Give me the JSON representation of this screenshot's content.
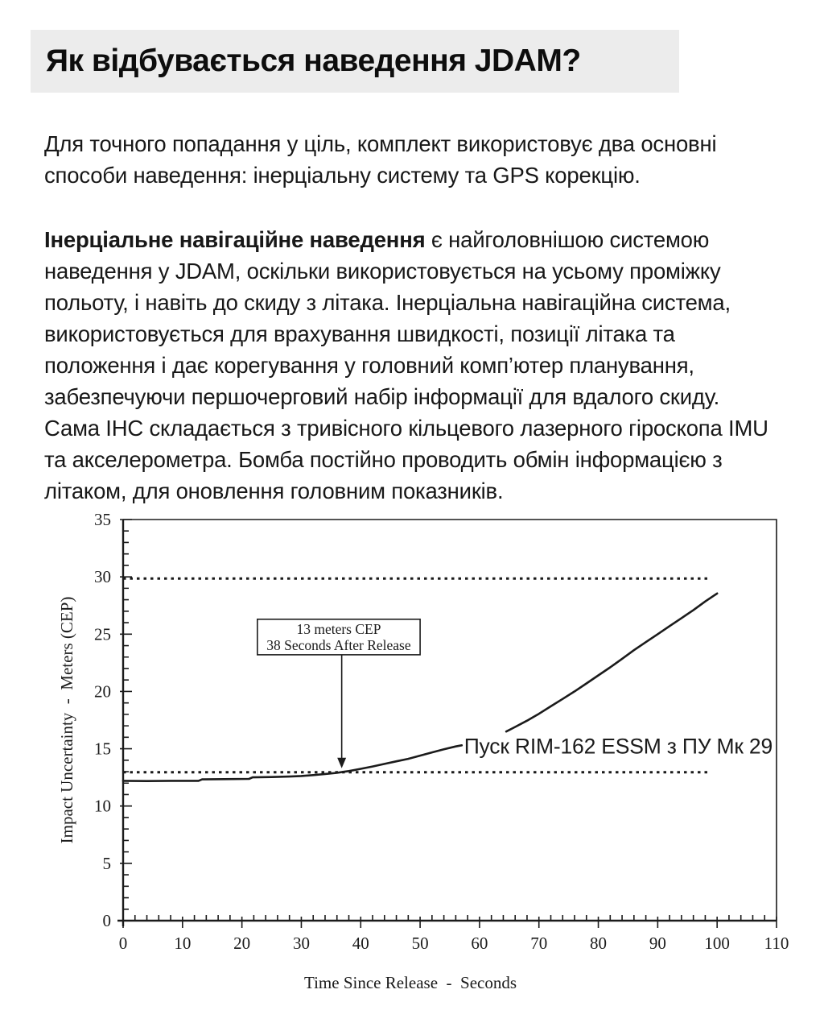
{
  "colors": {
    "page_bg": "#ffffff",
    "title_block_bg": "#ececec",
    "text_color": "#181818",
    "chart_ink": "#1b1b1b"
  },
  "header": {
    "title": "Як відбувається наведення JDAM?"
  },
  "intro_paragraph": "Для точного попадання у ціль, комплект використовує два основні способи наведення: інерціальну систему та GPS корекцію.",
  "body_paragraph": {
    "bold_lead": "Інерціальне навігаційне наведення",
    "rest": " є найголовнішою системою наведення у JDAM, оскільки використовується на усьому проміжку польоту, і навіть до скиду з літака. Інерціальна навігаційна система, використовується для врахування швидкості, позиції літака та положення і дає корегування у головний комп’ютер планування, забезпечуючи першочерговий набір інформації для вдалого скиду. Сама ІНС складається з тривісного кільцевого лазерного гіроскопа IMU та акселерометра. Бомба постійно проводить обмін інформацією з літаком, для оновлення головним показників."
  },
  "chart_data": {
    "type": "line",
    "title": "",
    "xlabel": "Time Since Release  -  Seconds",
    "ylabel": "Impact Uncertainty  -  Meters (CEP)",
    "xlim": [
      0,
      110
    ],
    "ylim": [
      0,
      35
    ],
    "x_major": 10,
    "x_minor": 2,
    "y_major": 5,
    "y_minor": 1,
    "x_ticks": [
      0,
      10,
      20,
      30,
      40,
      50,
      60,
      70,
      80,
      90,
      100,
      110
    ],
    "y_ticks": [
      0,
      5,
      10,
      15,
      20,
      25,
      30,
      35
    ],
    "grid": false,
    "legend": false,
    "ref_lines": [
      {
        "y": 29.85,
        "x0": 0,
        "x1": 99,
        "style": "dotted",
        "meaning": "GPS-denied upper CEP bound ~30 m"
      },
      {
        "y": 12.95,
        "x0": 0,
        "x1": 99,
        "style": "dotted",
        "meaning": "13 m CEP reference"
      }
    ],
    "series": [
      {
        "name": "Impact uncertainty vs time since release",
        "segments": [
          [
            [
              0,
              12.2
            ],
            [
              4,
              12.18
            ],
            [
              8,
              12.2
            ],
            [
              12.7,
              12.2
            ],
            [
              13.3,
              12.33
            ],
            [
              17,
              12.35
            ],
            [
              21.2,
              12.37
            ],
            [
              21.8,
              12.5
            ],
            [
              25,
              12.53
            ],
            [
              28,
              12.57
            ],
            [
              30,
              12.62
            ],
            [
              32,
              12.7
            ],
            [
              34,
              12.8
            ],
            [
              36,
              12.9
            ],
            [
              37,
              12.98
            ],
            [
              38,
              13.05
            ],
            [
              40,
              13.25
            ],
            [
              42,
              13.45
            ],
            [
              44,
              13.68
            ],
            [
              46,
              13.9
            ],
            [
              48,
              14.12
            ],
            [
              50,
              14.4
            ],
            [
              52,
              14.68
            ],
            [
              54,
              14.95
            ],
            [
              56,
              15.2
            ],
            [
              57,
              15.3
            ]
          ],
          [
            [
              64.5,
              16.5
            ],
            [
              66,
              16.9
            ],
            [
              68,
              17.45
            ],
            [
              70,
              18.05
            ],
            [
              72,
              18.7
            ],
            [
              74,
              19.35
            ],
            [
              76,
              20.0
            ],
            [
              78,
              20.7
            ],
            [
              80,
              21.4
            ],
            [
              82,
              22.1
            ],
            [
              84,
              22.85
            ],
            [
              86,
              23.6
            ],
            [
              88,
              24.3
            ],
            [
              90,
              25.0
            ],
            [
              92,
              25.7
            ],
            [
              94,
              26.4
            ],
            [
              96,
              27.1
            ],
            [
              98,
              27.85
            ],
            [
              100,
              28.55
            ]
          ]
        ]
      }
    ],
    "annotation_box": {
      "lines": [
        "13 meters CEP",
        "38 Seconds After Release"
      ],
      "x": [
        22.6,
        50.0
      ],
      "y": [
        23.2,
        26.3
      ]
    },
    "arrow": {
      "x": 36.8,
      "y_from": 23.2,
      "y_to": 13.3
    },
    "overlay_label": {
      "text": "Пуск RIM-162 ESSM з ПУ Мк 29",
      "x": 57.4,
      "y": 14.6
    }
  }
}
